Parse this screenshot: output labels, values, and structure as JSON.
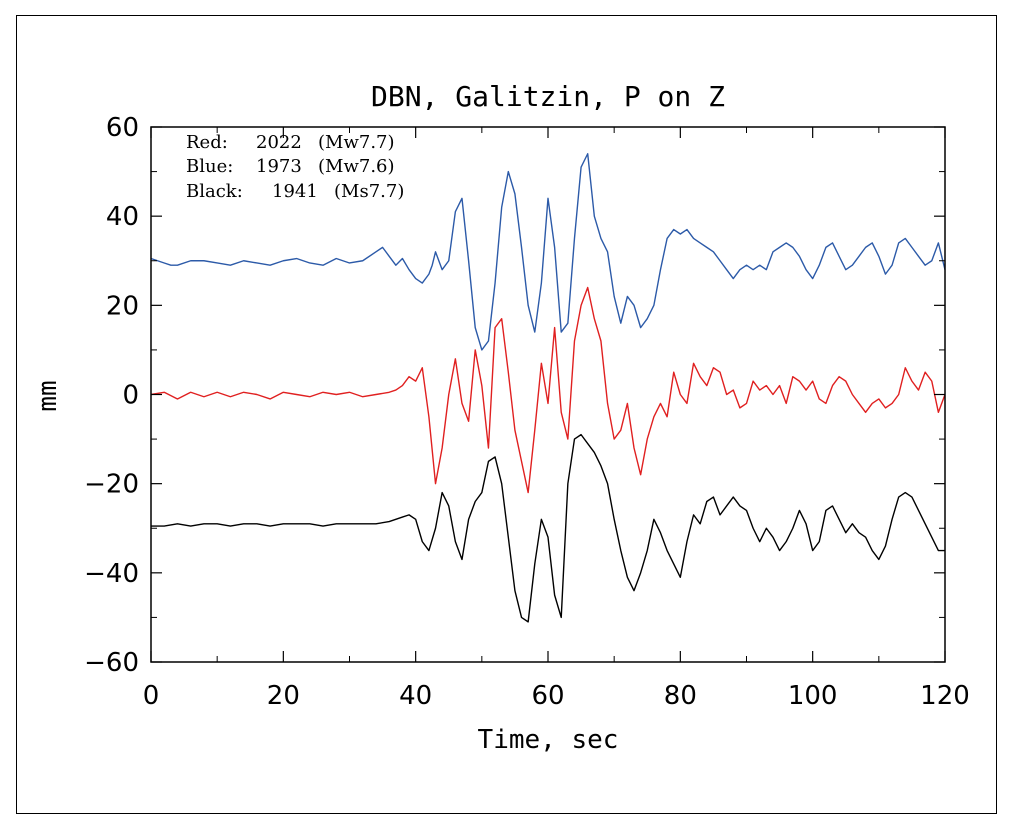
{
  "chart_data": {
    "type": "line",
    "title": "DBN, Galitzin, P on Z",
    "xlabel": "Time, sec",
    "ylabel": "mm",
    "xlim": [
      0,
      120
    ],
    "ylim": [
      -60,
      60
    ],
    "xticks": [
      0,
      20,
      40,
      60,
      80,
      100,
      120
    ],
    "yticks": [
      60,
      40,
      20,
      0,
      -20,
      -40,
      -60
    ],
    "xtick_labels": [
      "0",
      "20",
      "40",
      "60",
      "80",
      "100",
      "120"
    ],
    "ytick_labels": [
      "60",
      "40",
      "20",
      "0",
      "−20",
      "−40",
      "−60"
    ],
    "grid": false,
    "legend_position": "top-left",
    "legend": [
      {
        "label": "Red:",
        "year": "2022",
        "mag": "(Mw7.7)",
        "color": "#e02020"
      },
      {
        "label": "Blue:",
        "year": "1973",
        "mag": "(Mw7.6)",
        "color": "#2c5aa8"
      },
      {
        "label": "Black:",
        "year": "1941",
        "mag": "(Ms7.7)",
        "color": "#000000"
      }
    ],
    "series": [
      {
        "name": "1973 (Mw7.6)",
        "color": "#2c5aa8",
        "x": [
          0,
          2,
          3,
          4,
          6,
          8,
          10,
          12,
          14,
          16,
          18,
          20,
          22,
          24,
          26,
          28,
          30,
          32,
          34,
          35,
          36,
          37,
          38,
          39,
          40,
          41,
          42,
          42.5,
          43,
          44,
          45,
          46,
          47,
          48,
          49,
          50,
          51,
          52,
          53,
          54,
          55,
          56,
          57,
          58,
          59,
          60,
          61,
          62,
          63,
          64,
          65,
          66,
          67,
          68,
          69,
          70,
          71,
          72,
          73,
          74,
          75,
          76,
          77,
          78,
          79,
          80,
          81,
          82,
          83,
          84,
          85,
          86,
          87,
          88,
          89,
          90,
          91,
          92,
          93,
          94,
          95,
          96,
          97,
          98,
          99,
          100,
          101,
          102,
          103,
          104,
          105,
          106,
          107,
          108,
          109,
          110,
          111,
          112,
          113,
          114,
          115,
          116,
          117,
          118,
          119,
          120
        ],
        "y": [
          30.5,
          29.5,
          29,
          29,
          30,
          30,
          29.5,
          29,
          30,
          29.5,
          29,
          30,
          30.5,
          29.5,
          29,
          30.5,
          29.5,
          30,
          32,
          33,
          31,
          29,
          30.5,
          28,
          26,
          25,
          27,
          29,
          32,
          28,
          30,
          41,
          44,
          30,
          15,
          10,
          12,
          25,
          42,
          50,
          45,
          33,
          20,
          14,
          25,
          44,
          33,
          14,
          16,
          35,
          51,
          54,
          40,
          35,
          32,
          22,
          16,
          22,
          20,
          15,
          17,
          20,
          28,
          35,
          37,
          36,
          37,
          35,
          34,
          33,
          32,
          30,
          28,
          26,
          28,
          29,
          28,
          29,
          28,
          32,
          33,
          34,
          33,
          31,
          28,
          26,
          29,
          33,
          34,
          31,
          28,
          29,
          31,
          33,
          34,
          31,
          27,
          29,
          34,
          35,
          33,
          31,
          29,
          30,
          34,
          28
        ]
      },
      {
        "name": "2022 (Mw7.7)",
        "color": "#e02020",
        "x": [
          0,
          2,
          4,
          6,
          8,
          10,
          12,
          14,
          16,
          18,
          20,
          22,
          24,
          26,
          28,
          30,
          32,
          34,
          36,
          37,
          38,
          39,
          40,
          41,
          42,
          43,
          44,
          45,
          46,
          47,
          48,
          49,
          50,
          51,
          52,
          53,
          54,
          55,
          56,
          57,
          58,
          59,
          60,
          61,
          62,
          63,
          64,
          65,
          66,
          67,
          68,
          69,
          70,
          71,
          72,
          73,
          74,
          75,
          76,
          77,
          78,
          79,
          80,
          81,
          82,
          83,
          84,
          85,
          86,
          87,
          88,
          89,
          90,
          91,
          92,
          93,
          94,
          95,
          96,
          97,
          98,
          99,
          100,
          101,
          102,
          103,
          104,
          105,
          106,
          107,
          108,
          109,
          110,
          111,
          112,
          113,
          114,
          115,
          116,
          117,
          118,
          119,
          120
        ],
        "y": [
          0,
          0.5,
          -1,
          0.5,
          -0.5,
          0.5,
          -0.5,
          0.5,
          0,
          -1,
          0.5,
          0,
          -0.5,
          0.5,
          0,
          0.5,
          -0.5,
          0,
          0.5,
          1,
          2,
          4,
          3,
          6,
          -5,
          -20,
          -12,
          0,
          8,
          -2,
          -6,
          10,
          2,
          -12,
          15,
          17,
          5,
          -8,
          -15,
          -22,
          -8,
          7,
          -2,
          15,
          -4,
          -10,
          12,
          20,
          24,
          17,
          12,
          -2,
          -10,
          -8,
          -2,
          -12,
          -18,
          -10,
          -5,
          -2,
          -5,
          5,
          0,
          -2,
          7,
          4,
          2,
          6,
          5,
          0,
          1,
          -3,
          -2,
          3,
          1,
          2,
          0,
          2,
          -2,
          4,
          3,
          1,
          3,
          -1,
          -2,
          2,
          4,
          3,
          0,
          -2,
          -4,
          -2,
          -1,
          -3,
          -2,
          0,
          6,
          3,
          1,
          5,
          3,
          -4,
          0
        ]
      },
      {
        "name": "1941 (Ms7.7)",
        "color": "#000000",
        "x": [
          0,
          2,
          4,
          6,
          8,
          10,
          12,
          14,
          16,
          18,
          20,
          22,
          24,
          26,
          28,
          30,
          32,
          34,
          36,
          37,
          38,
          39,
          40,
          41,
          42,
          43,
          44,
          45,
          46,
          47,
          48,
          49,
          50,
          51,
          52,
          53,
          54,
          55,
          56,
          57,
          58,
          59,
          60,
          61,
          62,
          63,
          64,
          65,
          66,
          67,
          68,
          69,
          70,
          71,
          72,
          73,
          74,
          75,
          76,
          77,
          78,
          79,
          80,
          81,
          82,
          83,
          84,
          85,
          86,
          87,
          88,
          89,
          90,
          91,
          92,
          93,
          94,
          95,
          96,
          97,
          98,
          99,
          100,
          101,
          102,
          103,
          104,
          105,
          106,
          107,
          108,
          109,
          110,
          111,
          112,
          113,
          114,
          115,
          116,
          117,
          118,
          119,
          120
        ],
        "y": [
          -29.5,
          -29.5,
          -29,
          -29.5,
          -29,
          -29,
          -29.5,
          -29,
          -29,
          -29.5,
          -29,
          -29,
          -29,
          -29.5,
          -29,
          -29,
          -29,
          -29,
          -28.5,
          -28,
          -27.5,
          -27,
          -28,
          -33,
          -35,
          -30,
          -22,
          -25,
          -33,
          -37,
          -28,
          -24,
          -22,
          -15,
          -14,
          -20,
          -32,
          -44,
          -50,
          -51,
          -38,
          -28,
          -32,
          -45,
          -50,
          -20,
          -10,
          -9,
          -11,
          -13,
          -16,
          -20,
          -28,
          -35,
          -41,
          -44,
          -40,
          -35,
          -28,
          -31,
          -35,
          -38,
          -41,
          -33,
          -27,
          -29,
          -24,
          -23,
          -27,
          -25,
          -23,
          -25,
          -26,
          -30,
          -33,
          -30,
          -32,
          -35,
          -33,
          -30,
          -26,
          -29,
          -35,
          -33,
          -26,
          -25,
          -28,
          -31,
          -29,
          -31,
          -32,
          -35,
          -37,
          -34,
          -28,
          -23,
          -22,
          -23,
          -26,
          -29,
          -32,
          -35,
          -35
        ]
      }
    ]
  }
}
